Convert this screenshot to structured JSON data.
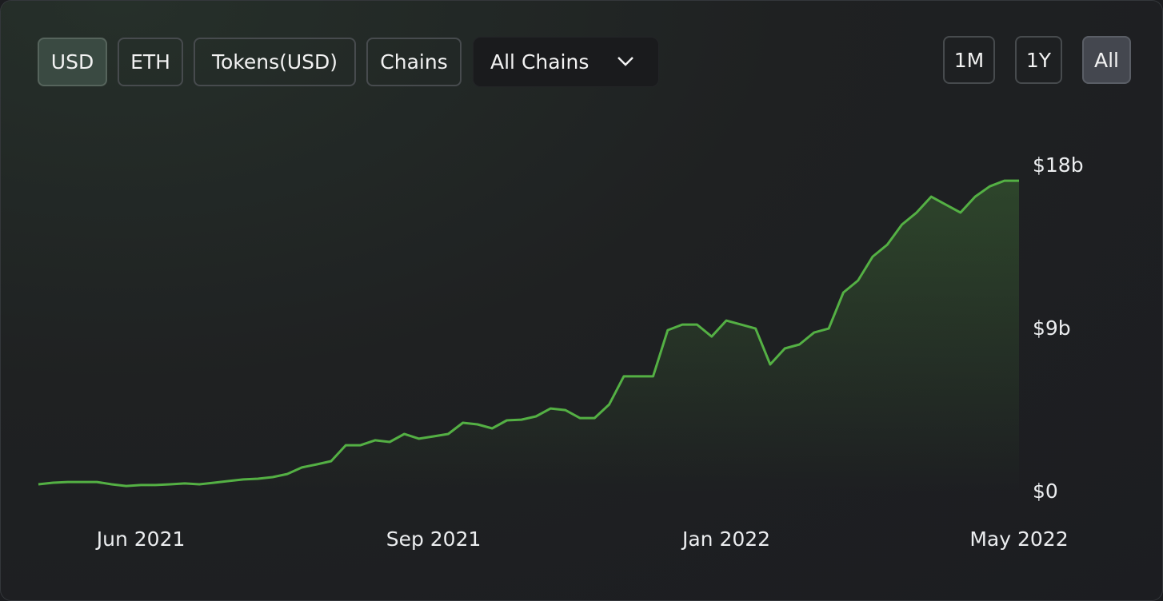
{
  "controls": {
    "data_buttons": [
      "USD",
      "ETH",
      "Tokens(USD)",
      "Chains"
    ],
    "chain_select": "All Chains",
    "range_buttons": [
      "1M",
      "1Y",
      "All"
    ]
  },
  "chart_data": {
    "type": "line",
    "color": "#54b044",
    "grid": false,
    "categories": [
      null,
      null,
      null,
      null,
      null,
      null,
      null,
      "Jun 2021",
      null,
      null,
      null,
      null,
      null,
      null,
      null,
      null,
      null,
      null,
      null,
      null,
      null,
      null,
      null,
      null,
      null,
      null,
      null,
      "Sep 2021",
      null,
      null,
      null,
      null,
      null,
      null,
      null,
      null,
      null,
      null,
      null,
      null,
      null,
      null,
      null,
      null,
      null,
      null,
      null,
      "Jan 2022",
      null,
      null,
      null,
      null,
      null,
      null,
      null,
      null,
      null,
      null,
      null,
      null,
      null,
      null,
      null,
      null,
      null,
      null,
      null,
      "May 2022"
    ],
    "values": [
      440000000.0,
      530000000.0,
      570000000.0,
      570000000.0,
      570000000.0,
      440000000.0,
      350000000.0,
      400000000.0,
      400000000.0,
      440000000.0,
      490000000.0,
      440000000.0,
      530000000.0,
      620000000.0,
      710000000.0,
      750000000.0,
      840000000.0,
      1010000000.0,
      1370000000.0,
      1540000000.0,
      1720000000.0,
      2600000000.0,
      2600000000.0,
      2870000000.0,
      2780000000.0,
      3220000000.0,
      2960000000.0,
      3090000000.0,
      3220000000.0,
      3840000000.0,
      3750000000.0,
      3530000000.0,
      3970000000.0,
      4010000000.0,
      4190000000.0,
      4630000000.0,
      4540000000.0,
      4100000000.0,
      4100000000.0,
      4850000000.0,
      6400000000.0,
      6400000000.0,
      6400000000.0,
      8950000000.0,
      9260000000.0,
      9260000000.0,
      8600000000.0,
      9480000000.0,
      9260000000.0,
      9040000000.0,
      7060000000.0,
      7940000000.0,
      8160000000.0,
      8820000000.0,
      9040000000.0,
      11030000000.0,
      11690000000.0,
      13010000000.0,
      13670000000.0,
      14780000000.0,
      15440000000.0,
      16320000000.0,
      15880000000.0,
      15440000000.0,
      16320000000.0,
      16890000000.0,
      17200000000.0,
      17200000000.0
    ],
    "ylim": [
      0,
      18000000000
    ],
    "yticks": [
      {
        "value": 0,
        "label": "$0"
      },
      {
        "value": 9000000000,
        "label": "$9b"
      },
      {
        "value": 18000000000,
        "label": "$18b"
      }
    ]
  }
}
